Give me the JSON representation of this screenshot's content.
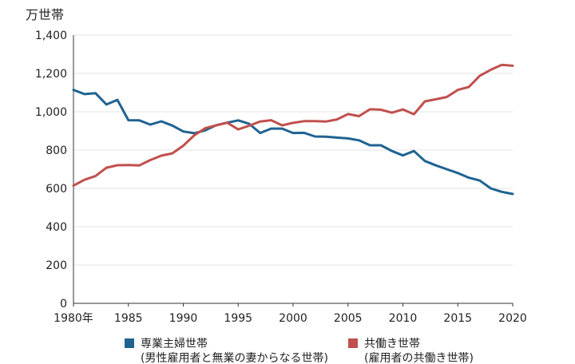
{
  "chart_data": {
    "type": "line",
    "unit_label": "万世帯",
    "x_tick_labels": [
      "1980年",
      "1985",
      "1990",
      "1995",
      "2000",
      "2005",
      "2010",
      "2015",
      "2020"
    ],
    "x_ticks": [
      1980,
      1985,
      1990,
      1995,
      2000,
      2005,
      2010,
      2015,
      2020
    ],
    "y_ticks": [
      0,
      200,
      400,
      600,
      800,
      1000,
      1200,
      1400
    ],
    "y_tick_labels": [
      "0",
      "200",
      "400",
      "600",
      "800",
      "1,000",
      "1,200",
      "1,400"
    ],
    "xlim": [
      1980,
      2020
    ],
    "ylim": [
      0,
      1400
    ],
    "grid": true,
    "legend_position": "bottom",
    "x": [
      1980,
      1981,
      1982,
      1983,
      1984,
      1985,
      1986,
      1987,
      1988,
      1989,
      1990,
      1991,
      1992,
      1993,
      1994,
      1995,
      1996,
      1997,
      1998,
      1999,
      2000,
      2001,
      2002,
      2003,
      2004,
      2005,
      2006,
      2007,
      2008,
      2009,
      2010,
      2011,
      2012,
      2013,
      2014,
      2015,
      2016,
      2017,
      2018,
      2019,
      2020
    ],
    "series": [
      {
        "name": "専業主婦世帯",
        "sub": "(男性雇用者と無業の妻からなる世帯)",
        "color": "#1f6391",
        "values": [
          1114,
          1092,
          1097,
          1038,
          1062,
          956,
          955,
          933,
          950,
          928,
          897,
          888,
          903,
          930,
          943,
          955,
          937,
          889,
          912,
          912,
          889,
          890,
          871,
          870,
          865,
          861,
          851,
          825,
          825,
          795,
          772,
          795,
          743,
          720,
          700,
          680,
          656,
          641,
          600,
          582,
          571
        ]
      },
      {
        "name": "共働き世帯",
        "sub": "(雇用者の共働き世帯)",
        "color": "#c0504d",
        "values": [
          614,
          645,
          664,
          708,
          721,
          722,
          720,
          748,
          771,
          783,
          823,
          877,
          914,
          929,
          943,
          908,
          927,
          949,
          956,
          929,
          942,
          951,
          951,
          949,
          960,
          988,
          977,
          1013,
          1011,
          995,
          1012,
          987,
          1054,
          1065,
          1077,
          1114,
          1129,
          1188,
          1219,
          1245,
          1240
        ]
      }
    ]
  }
}
